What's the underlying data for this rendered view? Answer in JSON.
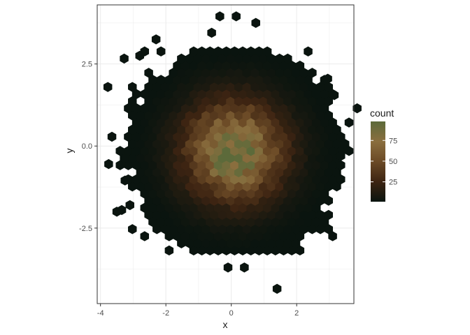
{
  "chart_data": {
    "type": "hexbin",
    "xlabel": "x",
    "ylabel": "y",
    "xlim": [
      -4.1,
      3.75
    ],
    "ylim": [
      -4.8,
      4.3
    ],
    "x_ticks": [
      {
        "value": -4,
        "label": "-4"
      },
      {
        "value": -2,
        "label": "-2"
      },
      {
        "value": 0,
        "label": "0"
      },
      {
        "value": 2,
        "label": "2"
      }
    ],
    "y_ticks": [
      {
        "value": -2.5,
        "label": "-2.5"
      },
      {
        "value": 0,
        "label": "0.0"
      },
      {
        "value": 2.5,
        "label": "2.5"
      }
    ],
    "grid": true,
    "gradient_colors": [
      "#0a140f",
      "#3d2412",
      "#6b4a26",
      "#8a6e3e",
      "#5c6a3a"
    ],
    "legend": {
      "title": "count",
      "position": "right",
      "range": [
        1,
        98
      ],
      "ticks": [
        {
          "value": 25,
          "label": "25"
        },
        {
          "value": 50,
          "label": "50"
        },
        {
          "value": 75,
          "label": "75"
        }
      ]
    },
    "distribution": {
      "mean_x": 0.1,
      "mean_y": -0.15,
      "sd": 1.0,
      "peak_count": 97,
      "bin_width": 0.25
    },
    "outlier_bins": [
      {
        "x": -3.75,
        "y": -0.55
      },
      {
        "x": -3.25,
        "y": -1.05
      },
      {
        "x": -3.5,
        "y": -2.0
      },
      {
        "x": -3.35,
        "y": -1.95
      },
      {
        "x": -3.1,
        "y": -1.8
      },
      {
        "x": -2.3,
        "y": 3.25
      },
      {
        "x": -2.8,
        "y": 2.75
      },
      {
        "x": -0.6,
        "y": 3.45
      },
      {
        "x": -0.35,
        "y": 3.95
      },
      {
        "x": 0.15,
        "y": 3.95
      },
      {
        "x": 0.75,
        "y": 3.75
      },
      {
        "x": -0.1,
        "y": -3.7
      },
      {
        "x": 0.4,
        "y": -3.7
      },
      {
        "x": 1.4,
        "y": -4.35
      },
      {
        "x": 3.35,
        "y": -0.3
      },
      {
        "x": 3.15,
        "y": 1.55
      },
      {
        "x": 2.95,
        "y": 2.05
      }
    ]
  }
}
